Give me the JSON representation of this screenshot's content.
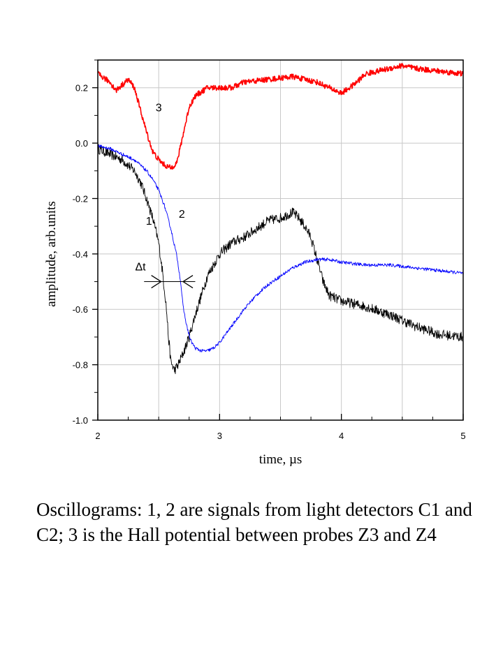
{
  "chart_data": {
    "type": "line",
    "xlabel": "time, µs",
    "ylabel": "amplitude, arb.units",
    "xlim": [
      2,
      5
    ],
    "ylim": [
      -1.0,
      0.3
    ],
    "x_ticks": [
      "2",
      "3",
      "4",
      "5"
    ],
    "y_ticks": [
      "0.2",
      "0.0",
      "-0.2",
      "-0.4",
      "-0.6",
      "-0.8",
      "-1.0"
    ],
    "grid": true,
    "series": [
      {
        "name": "1",
        "color": "#000000",
        "x": [
          2.0,
          2.1,
          2.2,
          2.3,
          2.35,
          2.4,
          2.45,
          2.5,
          2.53,
          2.56,
          2.58,
          2.6,
          2.63,
          2.66,
          2.7,
          2.75,
          2.8,
          2.85,
          2.9,
          3.0,
          3.1,
          3.2,
          3.3,
          3.4,
          3.5,
          3.6,
          3.65,
          3.7,
          3.75,
          3.8,
          3.85,
          3.9,
          4.0,
          4.2,
          4.4,
          4.6,
          4.8,
          5.0
        ],
        "y": [
          -0.02,
          -0.04,
          -0.06,
          -0.1,
          -0.14,
          -0.2,
          -0.27,
          -0.36,
          -0.46,
          -0.58,
          -0.7,
          -0.79,
          -0.82,
          -0.8,
          -0.76,
          -0.7,
          -0.62,
          -0.55,
          -0.48,
          -0.4,
          -0.36,
          -0.34,
          -0.31,
          -0.28,
          -0.27,
          -0.25,
          -0.27,
          -0.3,
          -0.34,
          -0.42,
          -0.5,
          -0.55,
          -0.57,
          -0.59,
          -0.62,
          -0.66,
          -0.69,
          -0.7
        ]
      },
      {
        "name": "2",
        "color": "#0000ff",
        "x": [
          2.0,
          2.1,
          2.2,
          2.3,
          2.4,
          2.45,
          2.5,
          2.55,
          2.6,
          2.65,
          2.68,
          2.7,
          2.73,
          2.76,
          2.8,
          2.85,
          2.9,
          2.95,
          3.0,
          3.1,
          3.2,
          3.3,
          3.4,
          3.5,
          3.6,
          3.7,
          3.8,
          3.9,
          4.0,
          4.2,
          4.4,
          4.6,
          4.8,
          5.0
        ],
        "y": [
          -0.01,
          -0.02,
          -0.04,
          -0.06,
          -0.1,
          -0.13,
          -0.17,
          -0.23,
          -0.31,
          -0.41,
          -0.5,
          -0.59,
          -0.66,
          -0.71,
          -0.74,
          -0.75,
          -0.75,
          -0.74,
          -0.72,
          -0.66,
          -0.6,
          -0.55,
          -0.51,
          -0.48,
          -0.45,
          -0.43,
          -0.42,
          -0.42,
          -0.43,
          -0.44,
          -0.44,
          -0.45,
          -0.46,
          -0.47
        ]
      },
      {
        "name": "3",
        "color": "#ff0000",
        "x": [
          2.0,
          2.1,
          2.15,
          2.2,
          2.25,
          2.3,
          2.35,
          2.4,
          2.45,
          2.5,
          2.55,
          2.6,
          2.65,
          2.7,
          2.75,
          2.8,
          2.9,
          3.0,
          3.1,
          3.2,
          3.4,
          3.6,
          3.8,
          3.9,
          4.0,
          4.1,
          4.2,
          4.4,
          4.5,
          4.6,
          4.8,
          5.0
        ],
        "y": [
          0.25,
          0.22,
          0.19,
          0.21,
          0.23,
          0.2,
          0.12,
          0.04,
          -0.03,
          -0.06,
          -0.08,
          -0.09,
          -0.07,
          0.03,
          0.13,
          0.17,
          0.2,
          0.2,
          0.2,
          0.22,
          0.23,
          0.24,
          0.22,
          0.2,
          0.18,
          0.21,
          0.25,
          0.27,
          0.28,
          0.27,
          0.26,
          0.25
        ]
      }
    ],
    "annotations": [
      {
        "text": "3",
        "x": 2.5,
        "y": 0.115
      },
      {
        "text": "1",
        "x": 2.42,
        "y": -0.295
      },
      {
        "text": "2",
        "x": 2.69,
        "y": -0.27
      },
      {
        "text": "Δt",
        "x": 2.35,
        "y": -0.46
      }
    ]
  },
  "caption": "Oscillograms: 1, 2 are signals from light detectors C1 and C2; 3 is the Hall potential between probes Z3 and Z4"
}
